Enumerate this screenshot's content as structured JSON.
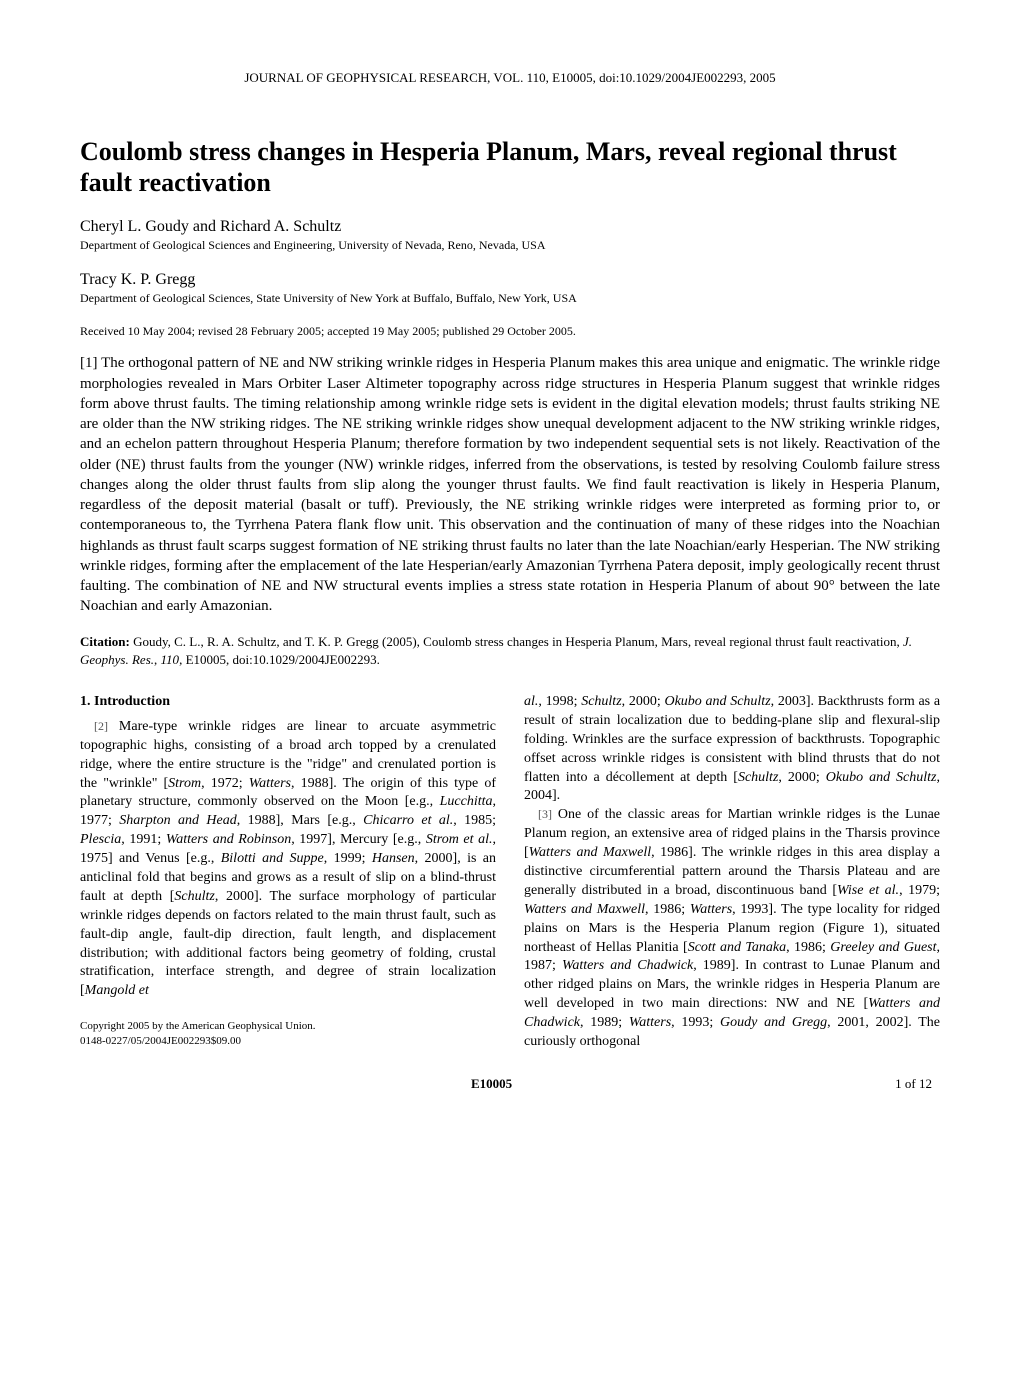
{
  "journal_header": "JOURNAL OF GEOPHYSICAL RESEARCH, VOL. 110, E10005, doi:10.1029/2004JE002293, 2005",
  "title": "Coulomb stress changes in Hesperia Planum, Mars, reveal regional thrust fault reactivation",
  "author1": {
    "name": "Cheryl L. Goudy and Richard A. Schultz",
    "affiliation": "Department of Geological Sciences and Engineering, University of Nevada, Reno, Nevada, USA"
  },
  "author2": {
    "name": "Tracy K. P. Gregg",
    "affiliation": "Department of Geological Sciences, State University of New York at Buffalo, Buffalo, New York, USA"
  },
  "dates": "Received 10 May 2004; revised 28 February 2005; accepted 19 May 2005; published 29 October 2005.",
  "abstract_prefix": "[1]",
  "abstract": "The orthogonal pattern of NE and NW striking wrinkle ridges in Hesperia Planum makes this area unique and enigmatic. The wrinkle ridge morphologies revealed in Mars Orbiter Laser Altimeter topography across ridge structures in Hesperia Planum suggest that wrinkle ridges form above thrust faults. The timing relationship among wrinkle ridge sets is evident in the digital elevation models; thrust faults striking NE are older than the NW striking ridges. The NE striking wrinkle ridges show unequal development adjacent to the NW striking wrinkle ridges, and an echelon pattern throughout Hesperia Planum; therefore formation by two independent sequential sets is not likely. Reactivation of the older (NE) thrust faults from the younger (NW) wrinkle ridges, inferred from the observations, is tested by resolving Coulomb failure stress changes along the older thrust faults from slip along the younger thrust faults. We find fault reactivation is likely in Hesperia Planum, regardless of the deposit material (basalt or tuff). Previously, the NE striking wrinkle ridges were interpreted as forming prior to, or contemporaneous to, the Tyrrhena Patera flank flow unit. This observation and the continuation of many of these ridges into the Noachian highlands as thrust fault scarps suggest formation of NE striking thrust faults no later than the late Noachian/early Hesperian. The NW striking wrinkle ridges, forming after the emplacement of the late Hesperian/early Amazonian Tyrrhena Patera deposit, imply geologically recent thrust faulting. The combination of NE and NW structural events implies a stress state rotation in Hesperia Planum of about 90° between the late Noachian and early Amazonian.",
  "citation": {
    "label": "Citation:",
    "text_before_journal": "Goudy, C. L., R. A. Schultz, and T. K. P. Gregg (2005), Coulomb stress changes in Hesperia Planum, Mars, reveal regional thrust fault reactivation, ",
    "journal": "J. Geophys. Res.",
    "sep": ", ",
    "volume": "110",
    "text_after": ", E10005, doi:10.1029/2004JE002293."
  },
  "section1_heading": "1.   Introduction",
  "col1": {
    "p2_prefix": "[2]",
    "p2_a": "Mare-type wrinkle ridges are linear to arcuate asymmetric topographic highs, consisting of a broad arch topped by a crenulated ridge, where the entire structure is the \"ridge\" and crenulated portion is the \"wrinkle\" [",
    "p2_i1": "Strom",
    "p2_b": ", 1972; ",
    "p2_i2": "Watters",
    "p2_c": ", 1988]. The origin of this type of planetary structure, commonly observed on the Moon [e.g., ",
    "p2_i3": "Lucchitta",
    "p2_d": ", 1977; ",
    "p2_i4": "Sharpton and Head",
    "p2_e": ", 1988], Mars [e.g., ",
    "p2_i5": "Chicarro et al.",
    "p2_f": ", 1985; ",
    "p2_i6": "Plescia",
    "p2_g": ", 1991; ",
    "p2_i7": "Watters and Robinson",
    "p2_h": ", 1997], Mercury [e.g., ",
    "p2_i8": "Strom et al.",
    "p2_ii": ", 1975] and Venus [e.g., ",
    "p2_i9": "Bilotti and Suppe",
    "p2_j": ", 1999; ",
    "p2_i10": "Hansen",
    "p2_k": ", 2000], is an anticlinal fold that begins and grows as a result of slip on a blind-thrust fault at depth [",
    "p2_i11": "Schultz",
    "p2_l": ", 2000]. The surface morphology of particular wrinkle ridges depends on factors related to the main thrust fault, such as fault-dip angle, fault-dip direction, fault length, and displacement distribution; with additional factors being geometry of folding, crustal stratification, interface strength, and degree of strain localization [",
    "p2_i12": "Mangold et"
  },
  "copyright": {
    "line1": "Copyright 2005 by the American Geophysical Union.",
    "line2": "0148-0227/05/2004JE002293$09.00"
  },
  "col2": {
    "p2cont_i1": "al.",
    "p2cont_a": ", 1998; ",
    "p2cont_i2": "Schultz",
    "p2cont_b": ", 2000; ",
    "p2cont_i3": "Okubo and Schultz",
    "p2cont_c": ", 2003]. Backthrusts form as a result of strain localization due to bedding-plane slip and flexural-slip folding. Wrinkles are the surface expression of backthrusts. Topographic offset across wrinkle ridges is consistent with blind thrusts that do not flatten into a décollement at depth [",
    "p2cont_i4": "Schultz",
    "p2cont_d": ", 2000; ",
    "p2cont_i5": "Okubo and Schultz",
    "p2cont_e": ", 2004].",
    "p3_prefix": "[3]",
    "p3_a": "One of the classic areas for Martian wrinkle ridges is the Lunae Planum region, an extensive area of ridged plains in the Tharsis province [",
    "p3_i1": "Watters and Maxwell",
    "p3_b": ", 1986]. The wrinkle ridges in this area display a distinctive circumferential pattern around the Tharsis Plateau and are generally distributed in a broad, discontinuous band [",
    "p3_i2": "Wise et al.",
    "p3_c": ", 1979; ",
    "p3_i3": "Watters and Maxwell",
    "p3_d": ", 1986; ",
    "p3_i4": "Watters",
    "p3_e": ", 1993]. The type locality for ridged plains on Mars is the Hesperia Planum region (Figure 1), situated northeast of Hellas Planitia [",
    "p3_i5": "Scott and Tanaka",
    "p3_f": ", 1986; ",
    "p3_i6": "Greeley and Guest",
    "p3_g": ", 1987; ",
    "p3_i7": "Watters and Chadwick",
    "p3_h": ", 1989]. In contrast to Lunae Planum and other ridged plains on Mars, the wrinkle ridges in Hesperia Planum are well developed in two main directions: NW and NE [",
    "p3_i8": "Watters and Chadwick",
    "p3_ii": ", 1989; ",
    "p3_i9": "Watters",
    "p3_j": ", 1993; ",
    "p3_i10": "Goudy and Gregg",
    "p3_k": ", 2001, 2002]. The curiously orthogonal"
  },
  "footer": {
    "left": "",
    "center": "E10005",
    "right": "1 of 12"
  }
}
